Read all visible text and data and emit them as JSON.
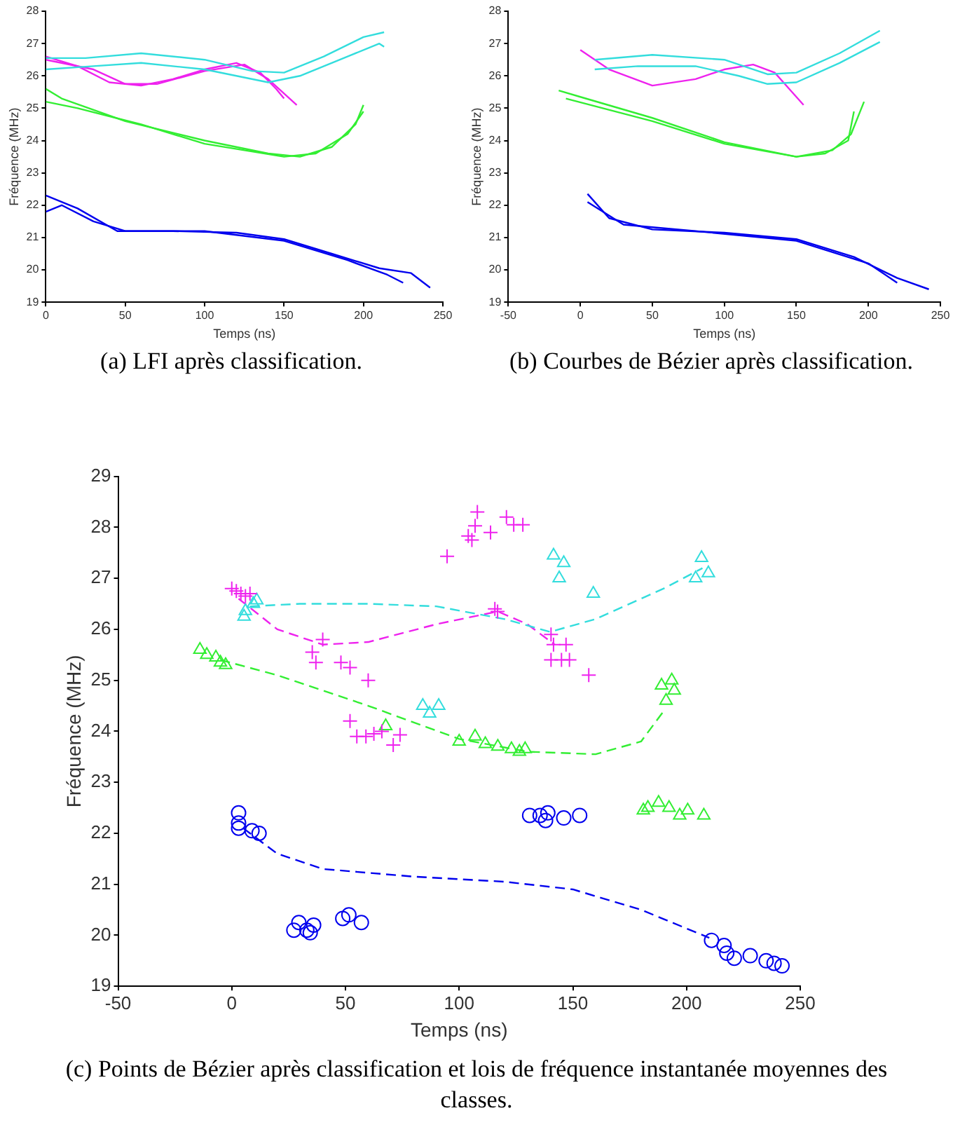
{
  "chart_data": [
    {
      "type": "line",
      "title": "(a) LFI après classification.",
      "xlabel": "Temps (ns)",
      "ylabel": "Fréquence (MHz)",
      "xlim": [
        0,
        250
      ],
      "xticks": [
        0,
        50,
        100,
        150,
        200,
        250
      ],
      "ylim": [
        19,
        28
      ],
      "yticks": [
        19,
        20,
        21,
        22,
        23,
        24,
        25,
        26,
        27,
        28
      ],
      "grid": false,
      "marker": "none",
      "line_style": "solid",
      "series": [
        {
          "color": "#33dddd",
          "x": [
            0,
            25,
            60,
            100,
            130,
            150,
            175,
            200,
            213
          ],
          "values": [
            26.55,
            26.55,
            26.7,
            26.5,
            26.15,
            26.1,
            26.6,
            27.2,
            27.35
          ]
        },
        {
          "color": "#33dddd",
          "x": [
            0,
            30,
            60,
            100,
            140,
            160,
            190,
            210,
            213
          ],
          "values": [
            26.2,
            26.3,
            26.4,
            26.2,
            25.8,
            26.0,
            26.6,
            27.0,
            26.9
          ]
        },
        {
          "color": "#ee22ee",
          "x": [
            0,
            20,
            40,
            60,
            80,
            100,
            120,
            135,
            145,
            150
          ],
          "values": [
            26.6,
            26.3,
            25.8,
            25.7,
            25.9,
            26.2,
            26.4,
            26.1,
            25.6,
            25.3
          ]
        },
        {
          "color": "#ee22ee",
          "x": [
            0,
            30,
            50,
            70,
            100,
            125,
            140,
            158
          ],
          "values": [
            26.5,
            26.2,
            25.75,
            25.75,
            26.15,
            26.35,
            25.9,
            25.1
          ]
        },
        {
          "color": "#33ee33",
          "x": [
            0,
            10,
            50,
            100,
            140,
            160,
            180,
            195,
            200
          ],
          "values": [
            25.6,
            25.3,
            24.6,
            24.0,
            23.6,
            23.5,
            23.8,
            24.5,
            25.1
          ]
        },
        {
          "color": "#33ee33",
          "x": [
            0,
            20,
            60,
            100,
            150,
            170,
            190,
            200
          ],
          "values": [
            25.2,
            25.0,
            24.5,
            23.9,
            23.5,
            23.6,
            24.2,
            24.9
          ]
        },
        {
          "color": "#0000ee",
          "x": [
            0,
            20,
            45,
            80,
            120,
            150,
            180,
            210,
            230,
            242
          ],
          "values": [
            22.3,
            21.9,
            21.2,
            21.2,
            21.15,
            20.95,
            20.5,
            20.05,
            19.9,
            19.45
          ]
        },
        {
          "color": "#0000ee",
          "x": [
            0,
            10,
            30,
            50,
            100,
            150,
            190,
            215,
            225
          ],
          "values": [
            21.8,
            22.0,
            21.5,
            21.2,
            21.2,
            20.9,
            20.3,
            19.85,
            19.6
          ]
        }
      ]
    },
    {
      "type": "line",
      "title": "(b) Courbes de Bézier après classification.",
      "xlabel": "Temps (ns)",
      "ylabel": "Fréquence (MHz)",
      "xlim": [
        -50,
        250
      ],
      "xticks": [
        -50,
        0,
        50,
        100,
        150,
        200,
        250
      ],
      "ylim": [
        19,
        28
      ],
      "yticks": [
        19,
        20,
        21,
        22,
        23,
        24,
        25,
        26,
        27,
        28
      ],
      "grid": false,
      "marker": "none",
      "line_style": "solid",
      "series": [
        {
          "color": "#33dddd",
          "x": [
            10,
            50,
            100,
            130,
            150,
            180,
            208
          ],
          "values": [
            26.5,
            26.65,
            26.5,
            26.05,
            26.1,
            26.7,
            27.4
          ]
        },
        {
          "color": "#33dddd",
          "x": [
            10,
            40,
            80,
            110,
            130,
            150,
            180,
            208
          ],
          "values": [
            26.2,
            26.3,
            26.3,
            26.0,
            25.75,
            25.8,
            26.4,
            27.05
          ]
        },
        {
          "color": "#ee22ee",
          "x": [
            0,
            20,
            50,
            80,
            100,
            120,
            135,
            145,
            155
          ],
          "values": [
            26.8,
            26.2,
            25.7,
            25.9,
            26.2,
            26.35,
            26.1,
            25.6,
            25.1
          ]
        },
        {
          "color": "#33ee33",
          "x": [
            -15,
            0,
            50,
            100,
            150,
            175,
            188,
            197
          ],
          "values": [
            25.55,
            25.35,
            24.7,
            23.95,
            23.5,
            23.7,
            24.2,
            25.2
          ]
        },
        {
          "color": "#33ee33",
          "x": [
            -10,
            50,
            100,
            150,
            170,
            186,
            190
          ],
          "values": [
            25.3,
            24.6,
            23.9,
            23.5,
            23.6,
            24.0,
            24.9
          ]
        },
        {
          "color": "#0000ee",
          "x": [
            5,
            20,
            50,
            100,
            150,
            190,
            220,
            242
          ],
          "values": [
            22.35,
            21.6,
            21.25,
            21.15,
            20.95,
            20.4,
            19.75,
            19.4
          ]
        },
        {
          "color": "#0000ee",
          "x": [
            5,
            30,
            80,
            150,
            200,
            220
          ],
          "values": [
            22.1,
            21.4,
            21.2,
            20.9,
            20.2,
            19.6
          ]
        }
      ]
    },
    {
      "type": "scatter",
      "title": "(c) Points de Bézier après classification et lois de fréquence instantanée moyennes des classes.",
      "xlabel": "Temps (ns)",
      "ylabel": "Fréquence (MHz)",
      "xlim": [
        -50,
        250
      ],
      "xticks": [
        -50,
        0,
        50,
        100,
        150,
        200,
        250
      ],
      "ylim": [
        19,
        29
      ],
      "yticks": [
        19,
        20,
        21,
        22,
        23,
        24,
        25,
        26,
        27,
        28,
        29
      ],
      "grid": false,
      "series": [
        {
          "color": "#ee22ee",
          "marker": "cross",
          "x": [
            0,
            2,
            4,
            6,
            8,
            40,
            35.4,
            37,
            48,
            52,
            60,
            94.7,
            104,
            108,
            107,
            105.6,
            113.8,
            120.8,
            124,
            128,
            115.7,
            116.9,
            140.4,
            141.5,
            147,
            140.4,
            145,
            148.5,
            157,
            52,
            55,
            59,
            62.5,
            66,
            71,
            74
          ],
          "values": [
            26.8,
            26.75,
            26.7,
            26.65,
            26.7,
            25.8,
            25.55,
            25.35,
            25.35,
            25.25,
            25.0,
            27.43,
            27.83,
            28.3,
            28.03,
            27.75,
            27.9,
            28.2,
            28.05,
            28.05,
            26.4,
            26.35,
            25.9,
            25.7,
            25.7,
            25.4,
            25.4,
            25.4,
            25.1,
            24.2,
            23.9,
            23.9,
            23.95,
            24.0,
            23.73,
            23.93
          ]
        },
        {
          "color": "#33dddd",
          "marker": "triangle",
          "x": [
            6,
            9.5,
            11,
            5.4,
            84,
            87,
            91,
            141.5,
            146,
            144,
            159,
            206.6,
            204,
            209.6
          ],
          "values": [
            26.36,
            26.5,
            26.57,
            26.25,
            24.5,
            24.35,
            24.5,
            27.45,
            27.3,
            27.0,
            26.7,
            27.4,
            27.0,
            27.1
          ]
        },
        {
          "color": "#33ee33",
          "marker": "triangle",
          "x": [
            -14,
            -11,
            -7,
            -5,
            -2.7,
            67.7,
            100,
            107,
            111.5,
            117,
            123,
            126.5,
            129,
            189,
            193.5,
            194.6,
            191,
            183,
            187.7,
            192.3,
            197,
            200.5,
            207.6,
            181
          ],
          "values": [
            25.6,
            25.5,
            25.45,
            25.35,
            25.3,
            24.1,
            23.8,
            23.9,
            23.75,
            23.7,
            23.65,
            23.6,
            23.65,
            24.9,
            25.0,
            24.8,
            24.6,
            22.5,
            22.6,
            22.5,
            22.35,
            22.45,
            22.35,
            22.45
          ]
        },
        {
          "color": "#0000ee",
          "marker": "circle",
          "x": [
            3,
            3,
            3,
            8.9,
            12,
            27.3,
            29.5,
            33,
            36,
            34.5,
            48.8,
            51.5,
            57,
            131,
            135.6,
            139,
            138,
            146,
            153,
            211,
            216.5,
            217.7,
            221,
            228,
            235,
            238.5,
            242
          ],
          "values": [
            22.4,
            22.2,
            22.1,
            22.05,
            22.0,
            20.1,
            20.25,
            20.1,
            20.2,
            20.05,
            20.33,
            20.4,
            20.25,
            22.35,
            22.35,
            22.4,
            22.25,
            22.3,
            22.35,
            19.9,
            19.8,
            19.65,
            19.55,
            19.6,
            19.5,
            19.45,
            19.4
          ]
        },
        {
          "type": "line",
          "line_style": "dashed",
          "marker": "none",
          "color": "#33dddd",
          "x": [
            8,
            30,
            60,
            90,
            120,
            140,
            160,
            190,
            207
          ],
          "values": [
            26.45,
            26.5,
            26.5,
            26.45,
            26.2,
            25.95,
            26.2,
            26.8,
            27.2
          ]
        },
        {
          "type": "line",
          "line_style": "dashed",
          "marker": "none",
          "color": "#ee22ee",
          "x": [
            3,
            20,
            40,
            60,
            90,
            117,
            130,
            142
          ],
          "values": [
            26.6,
            26.0,
            25.7,
            25.75,
            26.1,
            26.35,
            26.1,
            25.7
          ]
        },
        {
          "type": "line",
          "line_style": "dashed",
          "marker": "none",
          "color": "#33ee33",
          "x": [
            -5,
            20,
            60,
            100,
            130,
            160,
            180,
            190
          ],
          "values": [
            25.4,
            25.1,
            24.5,
            23.85,
            23.6,
            23.55,
            23.8,
            24.4
          ]
        },
        {
          "type": "line",
          "line_style": "dashed",
          "marker": "none",
          "color": "#0000ee",
          "x": [
            5,
            20,
            40,
            80,
            120,
            150,
            180,
            210
          ],
          "values": [
            22.1,
            21.6,
            21.3,
            21.15,
            21.05,
            20.9,
            20.5,
            19.95
          ]
        }
      ]
    }
  ]
}
